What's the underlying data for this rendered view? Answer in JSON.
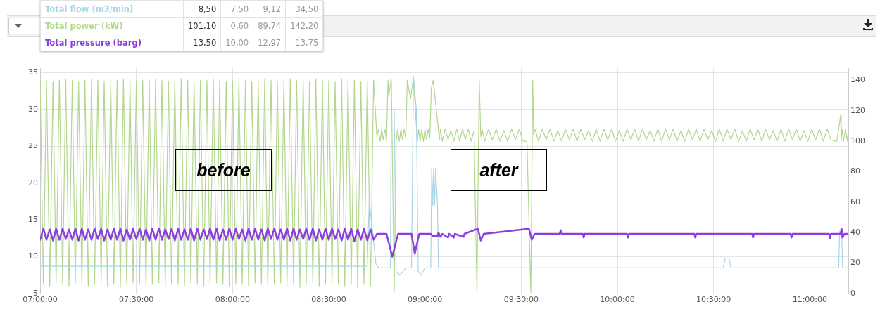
{
  "chart_data": {
    "type": "line",
    "xlim": [
      7,
      11.2
    ],
    "xticks": [
      {
        "value": 7,
        "label": "07:00:00"
      },
      {
        "value": 7.5,
        "label": "07:30:00"
      },
      {
        "value": 8,
        "label": "08:00:00"
      },
      {
        "value": 8.5,
        "label": "08:30:00"
      },
      {
        "value": 9,
        "label": "09:00:00"
      },
      {
        "value": 9.5,
        "label": "09:30:00"
      },
      {
        "value": 10,
        "label": "10:00:00"
      },
      {
        "value": 10.5,
        "label": "10:30:00"
      },
      {
        "value": 11,
        "label": "11:00:00"
      }
    ],
    "ylim": [
      5,
      35.6
    ],
    "yticks": [
      5,
      10,
      15,
      20,
      25,
      30,
      35
    ],
    "y2lim": [
      0,
      148
    ],
    "y2ticks": [
      0,
      20,
      40,
      60,
      80,
      100,
      120,
      140
    ],
    "grid": true,
    "legend": "top left",
    "marker": "none",
    "line_style": "solid",
    "annotations": [
      "before",
      "after",
      "8,50",
      "7,50",
      "9,12",
      "34,50",
      "101,10",
      "0,60",
      "89,74",
      "142,20",
      "13,50",
      "10,00",
      "12,97",
      "13,75"
    ],
    "series": [
      {
        "name": "Total flow (m3/min)",
        "color": "#a9d6e5",
        "x": [
          7,
          7.5,
          8,
          8.5,
          8.7,
          8.71,
          8.73,
          8.745,
          8.76,
          8.82,
          8.825,
          8.84,
          8.85,
          8.87,
          8.9,
          8.93,
          8.94,
          8.955,
          8.965,
          8.98,
          9,
          9.03,
          9.035,
          9.04,
          9.045,
          9.05,
          9.055,
          9.065,
          9.07,
          10.55,
          10.56,
          10.58,
          10.59,
          11.15,
          11.155,
          11.165,
          11.17,
          11.2
        ],
        "values": [
          8.7,
          8.7,
          8.7,
          8.7,
          8.7,
          17.5,
          13,
          9,
          8.5,
          8.5,
          30,
          30,
          8,
          7.5,
          8.5,
          8.5,
          34.5,
          30,
          8,
          7.5,
          8.5,
          8.5,
          22,
          17,
          22,
          17,
          22,
          17,
          8.5,
          8.5,
          9.8,
          9.8,
          8.5,
          8.5,
          13.5,
          13.5,
          8.5,
          8.5
        ]
      },
      {
        "name": "Total power (kW)",
        "color": "#b3d78f",
        "axis": "y2",
        "x": [
          7,
          7.017,
          7.033,
          7.05,
          7.067,
          7.083,
          7.1,
          7.117,
          7.133,
          7.15,
          7.167,
          7.183,
          7.2,
          7.217,
          7.233,
          7.25,
          7.267,
          7.283,
          7.3,
          7.317,
          7.333,
          7.35,
          7.367,
          7.383,
          7.4,
          7.417,
          7.433,
          7.45,
          7.467,
          7.483,
          7.5,
          7.517,
          7.533,
          7.55,
          7.567,
          7.583,
          7.6,
          7.617,
          7.633,
          7.65,
          7.667,
          7.683,
          7.7,
          7.717,
          7.733,
          7.75,
          7.767,
          7.783,
          7.8,
          7.817,
          7.833,
          7.85,
          7.867,
          7.883,
          7.9,
          7.917,
          7.933,
          7.95,
          7.967,
          7.983,
          8,
          8.017,
          8.033,
          8.05,
          8.067,
          8.083,
          8.1,
          8.117,
          8.133,
          8.15,
          8.167,
          8.183,
          8.2,
          8.217,
          8.233,
          8.25,
          8.267,
          8.283,
          8.3,
          8.317,
          8.333,
          8.35,
          8.367,
          8.383,
          8.4,
          8.417,
          8.433,
          8.45,
          8.467,
          8.483,
          8.5,
          8.517,
          8.533,
          8.55,
          8.567,
          8.583,
          8.6,
          8.617,
          8.633,
          8.65,
          8.667,
          8.683,
          8.7,
          8.717,
          8.733,
          8.75,
          8.758,
          8.767,
          8.775,
          8.783,
          8.792,
          8.8,
          8.808,
          8.812,
          8.825,
          8.84,
          8.85,
          8.858,
          8.867,
          8.875,
          8.883,
          8.892,
          8.9,
          8.908,
          8.925,
          8.94,
          8.96,
          8.967,
          8.975,
          8.983,
          8.992,
          9,
          9.008,
          9.017,
          9.025,
          9.033,
          9.043,
          9.075,
          9.08,
          9.09,
          9.105,
          9.12,
          9.135,
          9.15,
          9.165,
          9.18,
          9.195,
          9.21,
          9.225,
          9.24,
          9.255,
          9.27,
          9.282,
          9.29,
          9.297,
          9.31,
          9.33,
          9.35,
          9.37,
          9.39,
          9.41,
          9.43,
          9.45,
          9.47,
          9.49,
          9.51,
          9.53,
          9.55,
          9.56,
          9.565,
          9.572,
          9.59,
          9.61,
          9.63,
          9.65,
          9.67,
          9.69,
          9.71,
          9.73,
          9.75,
          9.77,
          9.79,
          9.81,
          9.83,
          9.85,
          9.87,
          9.89,
          9.91,
          9.93,
          9.95,
          9.97,
          9.99,
          10.01,
          10.03,
          10.05,
          10.07,
          10.09,
          10.11,
          10.13,
          10.15,
          10.17,
          10.19,
          10.21,
          10.23,
          10.25,
          10.27,
          10.29,
          10.31,
          10.33,
          10.35,
          10.37,
          10.39,
          10.41,
          10.43,
          10.45,
          10.47,
          10.49,
          10.51,
          10.53,
          10.55,
          10.57,
          10.59,
          10.61,
          10.63,
          10.65,
          10.67,
          10.69,
          10.71,
          10.73,
          10.75,
          10.77,
          10.79,
          10.81,
          10.83,
          10.85,
          10.87,
          10.89,
          10.91,
          10.93,
          10.95,
          10.97,
          10.99,
          11.01,
          11.03,
          11.05,
          11.07,
          11.09,
          11.11,
          11.13,
          11.14,
          11.16,
          11.163,
          11.167,
          11.175,
          11.185,
          11.195,
          11.2
        ],
        "values": [
          140,
          6,
          140,
          5,
          139,
          7,
          140,
          6,
          141,
          5,
          140,
          7,
          139,
          6,
          140,
          5,
          141,
          6,
          140,
          7,
          139,
          5,
          140,
          6,
          140,
          4,
          141,
          6,
          140,
          7,
          139,
          6,
          140,
          5,
          140,
          6,
          141,
          7,
          140,
          5,
          139,
          6,
          140,
          6,
          141,
          5,
          140,
          7,
          139,
          6,
          140,
          5,
          140,
          6,
          141,
          7,
          140,
          6,
          139,
          5,
          140,
          6,
          141,
          6,
          140,
          5,
          139,
          7,
          140,
          6,
          141,
          5,
          140,
          6,
          139,
          7,
          140,
          5,
          141,
          6,
          140,
          4,
          140,
          6,
          139,
          7,
          141,
          5,
          140,
          6,
          140,
          7,
          139,
          6,
          141,
          5,
          140,
          6,
          140,
          4,
          139,
          6,
          141,
          5,
          140,
          103,
          108,
          100,
          108,
          101,
          108,
          100,
          140,
          130,
          141,
          1,
          100,
          108,
          100,
          108,
          101,
          108,
          102,
          140,
          128,
          142,
          100,
          108,
          100,
          108,
          100,
          108,
          101,
          108,
          102,
          135,
          140,
          101,
          108,
          100,
          108,
          101,
          107,
          100,
          108,
          100,
          108,
          101,
          108,
          100,
          107,
          0.6,
          140,
          103,
          108,
          100,
          108,
          101,
          108,
          100,
          107,
          100,
          108,
          101,
          108,
          100,
          100,
          0.6,
          140,
          103,
          108,
          100,
          108,
          101,
          108,
          100,
          107,
          100,
          108,
          101,
          108,
          100,
          108,
          101,
          107,
          100,
          108,
          100,
          108,
          101,
          108,
          100,
          107,
          100,
          108,
          101,
          108,
          100,
          108,
          101,
          107,
          100,
          108,
          100,
          108,
          101,
          108,
          100,
          107,
          100,
          108,
          101,
          108,
          100,
          108,
          101,
          107,
          100,
          108,
          100,
          108,
          101,
          108,
          100,
          107,
          100,
          108,
          101,
          108,
          100,
          108,
          101,
          107,
          100,
          108,
          100,
          108,
          101,
          108,
          100,
          107,
          100,
          108,
          101,
          108,
          100,
          108,
          101,
          100,
          100,
          117,
          100,
          108,
          100,
          108,
          100,
          108
        ]
      },
      {
        "name": "Total pressure (barg)",
        "color": "#8b3fe0",
        "x": [
          7,
          7.017,
          7.033,
          7.05,
          7.067,
          7.083,
          7.1,
          7.117,
          7.133,
          7.15,
          7.167,
          7.183,
          7.2,
          7.217,
          7.233,
          7.25,
          7.267,
          7.283,
          7.3,
          7.317,
          7.333,
          7.35,
          7.367,
          7.383,
          7.4,
          7.417,
          7.433,
          7.45,
          7.467,
          7.483,
          7.5,
          7.517,
          7.533,
          7.55,
          7.567,
          7.583,
          7.6,
          7.617,
          7.633,
          7.65,
          7.667,
          7.683,
          7.7,
          7.717,
          7.733,
          7.75,
          7.767,
          7.783,
          7.8,
          7.817,
          7.833,
          7.85,
          7.867,
          7.883,
          7.9,
          7.917,
          7.933,
          7.95,
          7.967,
          7.983,
          8,
          8.017,
          8.033,
          8.05,
          8.067,
          8.083,
          8.1,
          8.117,
          8.133,
          8.15,
          8.167,
          8.183,
          8.2,
          8.217,
          8.233,
          8.25,
          8.267,
          8.283,
          8.3,
          8.317,
          8.333,
          8.35,
          8.367,
          8.383,
          8.4,
          8.417,
          8.433,
          8.45,
          8.467,
          8.483,
          8.5,
          8.517,
          8.533,
          8.55,
          8.567,
          8.583,
          8.6,
          8.617,
          8.633,
          8.65,
          8.667,
          8.683,
          8.7,
          8.717,
          8.733,
          8.75,
          8.8,
          8.83,
          8.86,
          8.93,
          8.947,
          8.97,
          9.03,
          9.04,
          9.065,
          9.07,
          9.08,
          9.09,
          9.12,
          9.125,
          9.15,
          9.155,
          9.2,
          9.205,
          9.275,
          9.29,
          9.305,
          9.54,
          9.555,
          9.57,
          9.7,
          9.705,
          9.71,
          9.82,
          9.825,
          9.83,
          10.05,
          10.055,
          10.06,
          10.4,
          10.405,
          10.41,
          10.7,
          10.705,
          10.71,
          10.9,
          10.905,
          10.91,
          11.1,
          11.105,
          11.11,
          11.16,
          11.165,
          11.17,
          11.18,
          11.2
        ],
        "values": [
          12.3,
          13.8,
          12.3,
          13.7,
          12.2,
          13.8,
          12.3,
          13.8,
          12.4,
          13.7,
          12.3,
          13.8,
          12.2,
          13.8,
          12.3,
          13.7,
          12.3,
          13.8,
          12.4,
          13.8,
          12.2,
          13.7,
          12.3,
          13.8,
          12.3,
          13.8,
          12.2,
          13.7,
          12.3,
          13.8,
          12.4,
          13.8,
          12.3,
          13.7,
          12.2,
          13.8,
          12.3,
          13.8,
          12.3,
          13.7,
          12.4,
          13.8,
          12.2,
          13.8,
          12.3,
          13.7,
          12.3,
          13.8,
          12.2,
          13.8,
          12.3,
          13.7,
          12.4,
          13.8,
          12.3,
          13.8,
          12.2,
          13.7,
          12.3,
          13.8,
          12.3,
          13.8,
          12.4,
          13.7,
          12.2,
          13.8,
          12.3,
          13.8,
          12.3,
          13.7,
          12.2,
          13.8,
          12.4,
          13.8,
          12.3,
          13.7,
          12.3,
          13.8,
          12.2,
          13.8,
          12.3,
          13.7,
          12.4,
          13.8,
          12.3,
          13.8,
          12.2,
          13.7,
          12.3,
          13.8,
          12.3,
          13.8,
          12.4,
          13.7,
          12.2,
          13.8,
          12.3,
          13.8,
          12.1,
          13.7,
          12.3,
          13.8,
          12.2,
          13.7,
          12.3,
          13.1,
          13.1,
          10,
          13.1,
          13.1,
          10.4,
          13.1,
          13.1,
          12.8,
          12.8,
          13.3,
          12.7,
          13.1,
          12.6,
          13.1,
          12.6,
          13.1,
          12.7,
          13.1,
          13.8,
          12.2,
          13.1,
          13.8,
          12.3,
          13.1,
          13.1,
          13.6,
          13.1,
          13.1,
          12.6,
          13.1,
          13.1,
          12.6,
          13.1,
          13.1,
          12.6,
          13.1,
          13.1,
          12.6,
          13.1,
          13.1,
          12.6,
          13.1,
          13.1,
          12.5,
          13.1,
          13.1,
          13.8,
          12.6,
          13.1,
          13.1
        ]
      }
    ]
  }
}
